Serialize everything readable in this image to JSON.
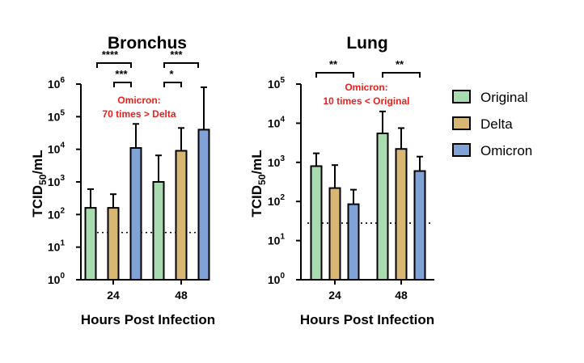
{
  "chart_data": [
    {
      "type": "bar",
      "title": "Bronchus",
      "xlabel": "Hours Post Infection",
      "ylabel": "TCID50/mL",
      "yscale": "log",
      "ylim": [
        1,
        1000000
      ],
      "ytick_labels": [
        "10^0",
        "10^1",
        "10^2",
        "10^3",
        "10^4",
        "10^5",
        "10^6"
      ],
      "categories": [
        "24",
        "48"
      ],
      "series": [
        {
          "name": "Original",
          "values": [
            160,
            1000
          ],
          "error_upper": [
            600,
            6500
          ]
        },
        {
          "name": "Delta",
          "values": [
            160,
            9000
          ],
          "error_upper": [
            420,
            45000
          ]
        },
        {
          "name": "Omicron",
          "values": [
            11000,
            40000
          ],
          "error_upper": [
            60000,
            800000
          ]
        }
      ],
      "detection_limit": 28,
      "significance": [
        {
          "label": "****",
          "from": "24 Original",
          "to": "24 Omicron"
        },
        {
          "label": "***",
          "from": "24 Delta",
          "to": "24 Omicron"
        },
        {
          "label": "***",
          "from": "48 Original",
          "to": "48 Omicron"
        },
        {
          "label": "*",
          "from": "48 Original",
          "to": "48 Delta"
        }
      ],
      "annotation": [
        "Omicron:",
        "70 times > Delta"
      ]
    },
    {
      "type": "bar",
      "title": "Lung",
      "xlabel": "Hours Post Infection",
      "ylabel": "TCID50/mL",
      "yscale": "log",
      "ylim": [
        1,
        100000
      ],
      "ytick_labels": [
        "10^0",
        "10^1",
        "10^2",
        "10^3",
        "10^4",
        "10^5"
      ],
      "categories": [
        "24",
        "48"
      ],
      "series": [
        {
          "name": "Original",
          "values": [
            800,
            5500
          ],
          "error_upper": [
            1700,
            20000
          ]
        },
        {
          "name": "Delta",
          "values": [
            220,
            2200
          ],
          "error_upper": [
            850,
            7500
          ]
        },
        {
          "name": "Omicron",
          "values": [
            85,
            600
          ],
          "error_upper": [
            200,
            1400
          ]
        }
      ],
      "detection_limit": 28,
      "significance": [
        {
          "label": "**",
          "from": "24 Original",
          "to": "24 Omicron"
        },
        {
          "label": "**",
          "from": "48 Original",
          "to": "48 Omicron"
        }
      ],
      "annotation": [
        "Omicron:",
        "10 times < Original"
      ]
    }
  ],
  "legend": {
    "placement": "right",
    "items": [
      {
        "label": "Original",
        "color": "#a8dcb0"
      },
      {
        "label": "Delta",
        "color": "#d8b774"
      },
      {
        "label": "Omicron",
        "color": "#7fa3d6"
      }
    ]
  },
  "colors": {
    "annotation": "#e8201c",
    "axis": "#000000"
  }
}
